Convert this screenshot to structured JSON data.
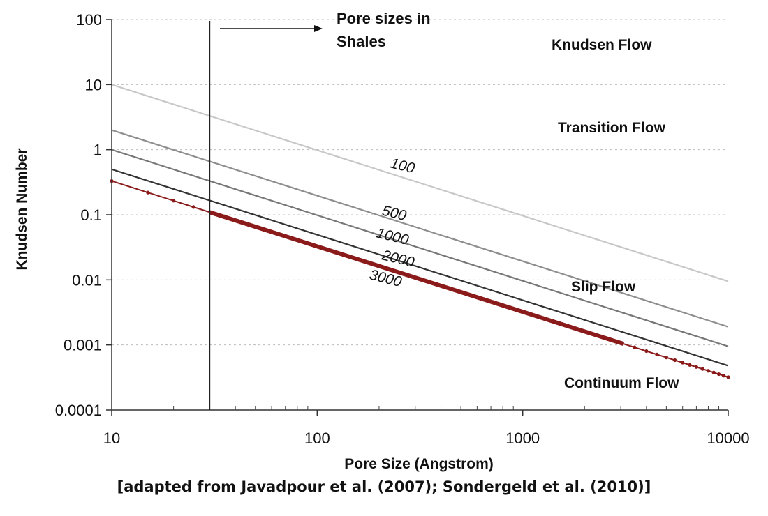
{
  "chart_data": {
    "type": "line",
    "log_x": true,
    "log_y": true,
    "xlim": [
      10,
      10000
    ],
    "ylim": [
      0.0001,
      100
    ],
    "x_ticks": [
      "10",
      "100",
      "1000",
      "10000"
    ],
    "y_ticks": [
      "0.0001",
      "0.001",
      "0.01",
      "0.1",
      "1",
      "10",
      "100"
    ],
    "xlabel": "Pore Size (Angstrom)",
    "ylabel": "Knudsen Number",
    "grid": "horizontal dotted",
    "series": [
      {
        "name": "100",
        "x": [
          10,
          10000
        ],
        "y": [
          10,
          0.0095
        ],
        "color": "#c8c8c8"
      },
      {
        "name": "500",
        "x": [
          10,
          10000
        ],
        "y": [
          2,
          0.0019
        ],
        "color": "#8e8e8e"
      },
      {
        "name": "1000",
        "x": [
          10,
          10000
        ],
        "y": [
          1,
          0.00095
        ],
        "color": "#777777"
      },
      {
        "name": "2000",
        "x": [
          10,
          10000
        ],
        "y": [
          0.5,
          0.00048
        ],
        "color": "#333333"
      },
      {
        "name": "3000",
        "x": [
          10,
          10000
        ],
        "y": [
          0.33,
          0.00032
        ],
        "color": "#8b1a1a"
      }
    ],
    "regions": [
      "Knudsen Flow",
      "Transition Flow",
      "Slip Flow",
      "Continuum Flow"
    ],
    "annotation": {
      "line1": "Pore sizes in",
      "line2": "Shales",
      "x": 30
    },
    "caption": "[adapted from Javadpour et al. (2007); Sondergeld et al. (2010)]"
  }
}
